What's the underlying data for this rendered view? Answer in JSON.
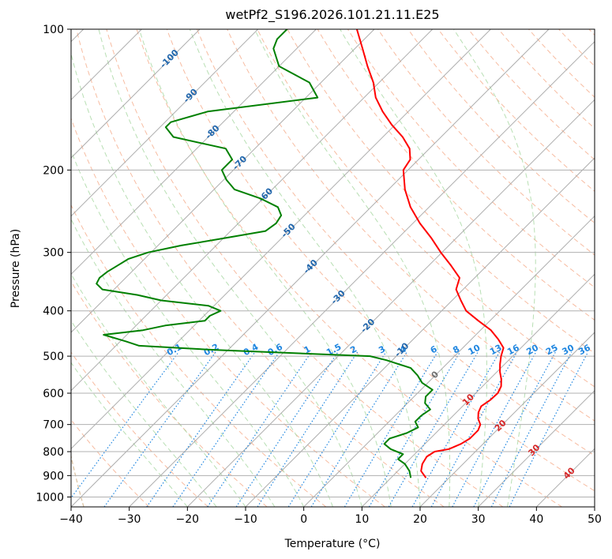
{
  "chart_data": {
    "type": "skew-t",
    "title": "wetPf2_S196.2026.101.21.11.E25",
    "xlabel": "Temperature (°C)",
    "ylabel": "Pressure (hPa)",
    "xlim": [
      -40,
      50
    ],
    "ylim_hpa": [
      1050,
      100
    ],
    "x_ticks": [
      -40,
      -30,
      -20,
      -10,
      0,
      10,
      20,
      30,
      40,
      50
    ],
    "x_tick_labels": [
      "−40",
      "−30",
      "−20",
      "−10",
      "0",
      "10",
      "20",
      "30",
      "40",
      "50"
    ],
    "y_ticks": [
      100,
      200,
      300,
      400,
      500,
      600,
      700,
      800,
      900,
      1000
    ],
    "y_tick_labels": [
      "100",
      "200",
      "300",
      "400",
      "500",
      "600",
      "700",
      "800",
      "900",
      "1000"
    ],
    "grid": true,
    "colors": {
      "temperature": "#ff0000",
      "dewpoint": "#008000",
      "isotherm": "#a0a0a0",
      "dry_adiabat": "#f4a582",
      "moist_adiabat": "#a6d7a0",
      "mixing_ratio": "#1f86e0",
      "ice_line": "#d2b48c",
      "isotherm_label_cold": "#2166ac",
      "isotherm_label_warm": "#d62728"
    },
    "series": [
      {
        "key": "temperature",
        "p": [
          910,
          880,
          850,
          820,
          800,
          790,
          770,
          750,
          720,
          700,
          680,
          660,
          640,
          620,
          600,
          580,
          560,
          540,
          520,
          500,
          480,
          460,
          440,
          420,
          400,
          380,
          360,
          340,
          320,
          300,
          280,
          260,
          240,
          220,
          200,
          190,
          180,
          170,
          160,
          150,
          140,
          130,
          120,
          110,
          100
        ],
        "t": [
          16.0,
          14.0,
          13.0,
          12.5,
          13.0,
          15.0,
          16.2,
          16.8,
          16.8,
          16.2,
          14.8,
          13.8,
          13.2,
          13.7,
          13.8,
          13.2,
          12.0,
          10.5,
          9.2,
          8.0,
          7.0,
          4.6,
          1.8,
          -2.0,
          -5.8,
          -8.5,
          -11.2,
          -12.6,
          -16.2,
          -20.2,
          -24.2,
          -28.8,
          -33.2,
          -37.2,
          -40.8,
          -41.4,
          -43.4,
          -46.6,
          -50.6,
          -54.4,
          -58.0,
          -61.0,
          -64.8,
          -68.7,
          -73.0
        ]
      },
      {
        "key": "dewpoint",
        "p": [
          910,
          880,
          850,
          830,
          810,
          790,
          770,
          750,
          730,
          710,
          690,
          670,
          650,
          630,
          610,
          590,
          570,
          550,
          530,
          510,
          500,
          485,
          475,
          465,
          450,
          440,
          430,
          420,
          410,
          400,
          390,
          380,
          370,
          360,
          350,
          340,
          330,
          320,
          310,
          300,
          290,
          280,
          270,
          260,
          250,
          240,
          230,
          220,
          210,
          200,
          190,
          180,
          170,
          162,
          158,
          150,
          140,
          130,
          120,
          110,
          105,
          100
        ],
        "t": [
          13.4,
          12.0,
          10.0,
          8.0,
          8.0,
          5.0,
          3.0,
          3.0,
          5.0,
          6.0,
          4.5,
          4.5,
          5.0,
          3.0,
          2.0,
          2.0,
          -1.0,
          -3.0,
          -5.5,
          -11.0,
          -14.5,
          -42.0,
          -56.0,
          -59.0,
          -64.0,
          -58.0,
          -55.0,
          -49.0,
          -49.0,
          -48.0,
          -51.0,
          -60.0,
          -65.0,
          -72.0,
          -74.0,
          -74.5,
          -74.2,
          -73.5,
          -72.8,
          -70.5,
          -66.0,
          -60.0,
          -54.0,
          -53.5,
          -54.0,
          -56.0,
          -60.5,
          -66.5,
          -69.5,
          -72.0,
          -72.0,
          -75.0,
          -86.0,
          -89.0,
          -89.0,
          -84.5,
          -68.0,
          -72.0,
          -80.0,
          -84.0,
          -85.0,
          -85.0
        ]
      }
    ],
    "isotherm_labels": [
      "-100",
      "-90",
      "-80",
      "-70",
      "-60",
      "-50",
      "-40",
      "-30",
      "-20",
      "-10",
      "0",
      "10",
      "20",
      "30",
      "40"
    ],
    "mixing_ratio_labels": [
      "0.1",
      "0.2",
      "0.4",
      "0.6",
      "1",
      "1.5",
      "2",
      "3",
      "4",
      "6",
      "8",
      "10",
      "13",
      "16",
      "20",
      "25",
      "30",
      "36"
    ]
  }
}
